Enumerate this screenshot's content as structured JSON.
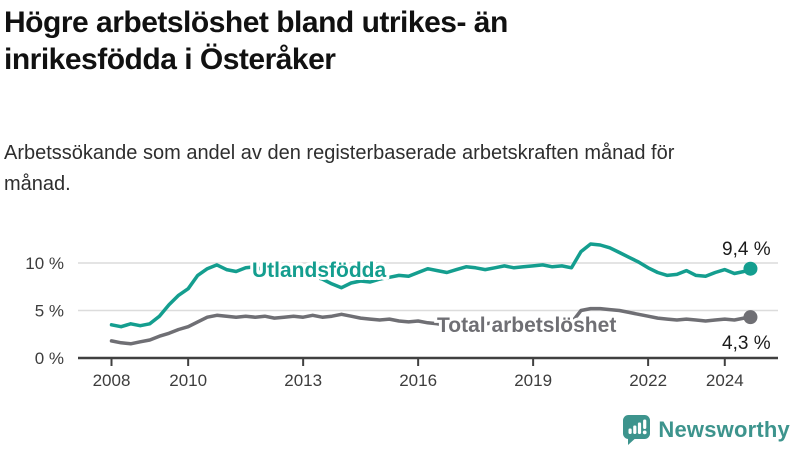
{
  "header": {
    "title": "Högre arbetslöshet bland utrikes- än inrikesfödda i Österåker",
    "subtitle": "Arbetssökande som andel av den registerbaserade arbetskraften månad för månad."
  },
  "footer": {
    "brand": "Newsworthy",
    "logo_icon": "bar-chart-speech-bubble-icon",
    "brand_color": "#3d948d"
  },
  "colors": {
    "series_utlandsfodda": "#149e8f",
    "series_total": "#6f6f74",
    "grid": "#dcdcdc",
    "axis": "#404040",
    "axis_label": "#3d3d3d",
    "end_label_text": "#1b1b1b"
  },
  "chart_data": {
    "type": "line",
    "title": "",
    "xlabel": "",
    "ylabel": "",
    "x_unit": "decimal year (monthly data shown, estimated at quarterly resolution)",
    "grid": "horizontal",
    "legend": "inline-labels",
    "ylim": [
      0,
      13
    ],
    "xlim": [
      2007.8,
      2025.2
    ],
    "yticks": [
      {
        "value": 0,
        "label": "0 %"
      },
      {
        "value": 5,
        "label": "5 %"
      },
      {
        "value": 10,
        "label": "10 %"
      }
    ],
    "xticks": [
      {
        "value": 2008,
        "label": "2008"
      },
      {
        "value": 2010,
        "label": "2010"
      },
      {
        "value": 2013,
        "label": "2013"
      },
      {
        "value": 2016,
        "label": "2016"
      },
      {
        "value": 2019,
        "label": "2019"
      },
      {
        "value": 2022,
        "label": "2022"
      },
      {
        "value": 2024,
        "label": "2024"
      }
    ],
    "x": [
      2008.0,
      2008.25,
      2008.5,
      2008.75,
      2009.0,
      2009.25,
      2009.5,
      2009.75,
      2010.0,
      2010.25,
      2010.5,
      2010.75,
      2011.0,
      2011.25,
      2011.5,
      2011.75,
      2012.0,
      2012.25,
      2012.5,
      2012.75,
      2013.0,
      2013.25,
      2013.5,
      2013.75,
      2014.0,
      2014.25,
      2014.5,
      2014.75,
      2015.0,
      2015.25,
      2015.5,
      2015.75,
      2016.0,
      2016.25,
      2016.5,
      2016.75,
      2017.0,
      2017.25,
      2017.5,
      2017.75,
      2018.0,
      2018.25,
      2018.5,
      2018.75,
      2019.0,
      2019.25,
      2019.5,
      2019.75,
      2020.0,
      2020.25,
      2020.5,
      2020.75,
      2021.0,
      2021.25,
      2021.5,
      2021.75,
      2022.0,
      2022.25,
      2022.5,
      2022.75,
      2023.0,
      2023.25,
      2023.5,
      2023.75,
      2024.0,
      2024.25,
      2024.5,
      2024.67
    ],
    "series": [
      {
        "name": "Utlandsfödda",
        "color": "#149e8f",
        "end_value": 9.4,
        "end_label": "9,4 %",
        "values": [
          3.5,
          3.3,
          3.6,
          3.4,
          3.6,
          4.4,
          5.6,
          6.6,
          7.3,
          8.7,
          9.4,
          9.8,
          9.3,
          9.1,
          9.5,
          9.6,
          9.2,
          9.0,
          9.3,
          9.4,
          8.9,
          8.6,
          8.3,
          7.8,
          7.4,
          7.9,
          8.1,
          8.0,
          8.3,
          8.5,
          8.7,
          8.6,
          9.0,
          9.4,
          9.2,
          9.0,
          9.3,
          9.6,
          9.5,
          9.3,
          9.5,
          9.7,
          9.5,
          9.6,
          9.7,
          9.8,
          9.6,
          9.7,
          9.5,
          11.2,
          12.0,
          11.9,
          11.6,
          11.1,
          10.6,
          10.1,
          9.5,
          9.0,
          8.7,
          8.8,
          9.2,
          8.7,
          8.6,
          9.0,
          9.3,
          8.9,
          9.1,
          9.4
        ]
      },
      {
        "name": "Total arbetslöshet",
        "color": "#6f6f74",
        "end_value": 4.3,
        "end_label": "4,3 %",
        "values": [
          1.8,
          1.6,
          1.5,
          1.7,
          1.9,
          2.3,
          2.6,
          3.0,
          3.3,
          3.8,
          4.3,
          4.5,
          4.4,
          4.3,
          4.4,
          4.3,
          4.4,
          4.2,
          4.3,
          4.4,
          4.3,
          4.5,
          4.3,
          4.4,
          4.6,
          4.4,
          4.2,
          4.1,
          4.0,
          4.1,
          3.9,
          3.8,
          3.9,
          3.7,
          3.6,
          3.4,
          3.6,
          3.7,
          3.5,
          3.6,
          3.7,
          3.5,
          3.6,
          3.5,
          3.6,
          3.5,
          3.4,
          3.5,
          3.7,
          5.0,
          5.2,
          5.2,
          5.1,
          5.0,
          4.8,
          4.6,
          4.4,
          4.2,
          4.1,
          4.0,
          4.1,
          4.0,
          3.9,
          4.0,
          4.1,
          4.0,
          4.2,
          4.3
        ]
      }
    ]
  }
}
